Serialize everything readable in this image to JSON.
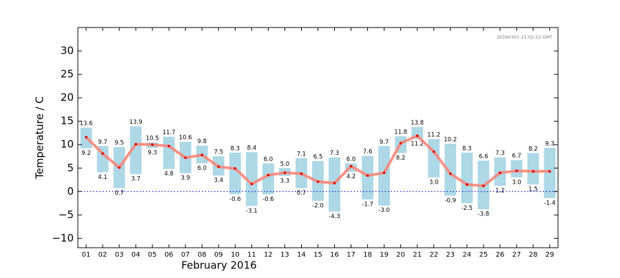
{
  "chart_data": {
    "type": "floating-bar-line",
    "xlabel": "February 2016",
    "ylabel": "Temperature / C",
    "annotation": "20160301 21:02:22 GMT",
    "categories": [
      "01",
      "02",
      "03",
      "04",
      "05",
      "06",
      "07",
      "08",
      "09",
      "10",
      "11",
      "12",
      "13",
      "14",
      "15",
      "16",
      "17",
      "18",
      "19",
      "20",
      "21",
      "22",
      "23",
      "24",
      "25",
      "26",
      "27",
      "28",
      "29"
    ],
    "series": [
      {
        "color": "#add8e6",
        "values": [
          13.6,
          9.7,
          9.5,
          13.9,
          10.5,
          11.7,
          10.6,
          9.8,
          7.5,
          8.3,
          8.4,
          6.0,
          5.0,
          7.1,
          6.5,
          7.3,
          6.0,
          7.6,
          9.7,
          11.8,
          13.8,
          11.2,
          10.2,
          8.3,
          6.6,
          7.3,
          6.7,
          8.2,
          9.3
        ],
        "value_labels": [
          "13.6",
          "9.7",
          "9.5",
          "13.9",
          "10.5",
          "11.7",
          "10.6",
          "9.8",
          "7.5",
          "8.3",
          "8.4",
          "6.0",
          "5.0",
          "7.1",
          "6.5",
          "7.3",
          "6.0",
          "7.6",
          "9.7",
          "11.8",
          "13.8",
          "11.2",
          "10.2",
          "8.3",
          "6.6",
          "7.3",
          "6.7",
          "8.2",
          "9.3"
        ]
      },
      {
        "color": "#add8e6",
        "values": [
          9.2,
          4.1,
          0.7,
          3.7,
          9.3,
          4.8,
          3.9,
          6.0,
          3.4,
          -0.6,
          -3.1,
          -0.6,
          3.3,
          0.7,
          -2.0,
          -4.3,
          4.2,
          -1.7,
          -3.0,
          8.2,
          11.2,
          3.0,
          -0.9,
          -2.5,
          -3.8,
          1.2,
          3.0,
          1.5,
          -1.4
        ],
        "value_labels": [
          "9.2",
          "4.1",
          "0.7",
          "3.7",
          "9.3",
          "4.8",
          "3.9",
          "6.0",
          "3.4",
          "-0.6",
          "-3.1",
          "-0.6",
          "3.3",
          "0.7",
          "-2.0",
          "-4.3",
          "4.2",
          "-1.7",
          "-3.0",
          "8.2",
          "11.2",
          "3.0",
          "-0.9",
          "-2.5",
          "-3.8",
          "1.2",
          "3.0",
          "1.5",
          "-1.4"
        ]
      },
      {
        "color": "#fa8072",
        "marker_color": "#dd0000",
        "values": [
          11.6,
          8.1,
          5.1,
          10.1,
          10.0,
          9.7,
          7.2,
          7.8,
          5.3,
          4.9,
          1.6,
          3.5,
          4.0,
          3.8,
          2.1,
          1.8,
          5.4,
          3.4,
          4.0,
          10.3,
          11.9,
          8.5,
          3.8,
          1.5,
          1.2,
          4.0,
          4.4,
          4.3,
          4.3
        ]
      }
    ],
    "ylim": [
      -12,
      35
    ],
    "yticks": [
      {
        "value": -10,
        "label": "−10"
      },
      {
        "value": -5,
        "label": "−5"
      },
      0,
      5,
      10,
      15,
      20,
      25,
      30
    ],
    "reference_line": {
      "value": 0,
      "color": "#0000cc"
    }
  }
}
